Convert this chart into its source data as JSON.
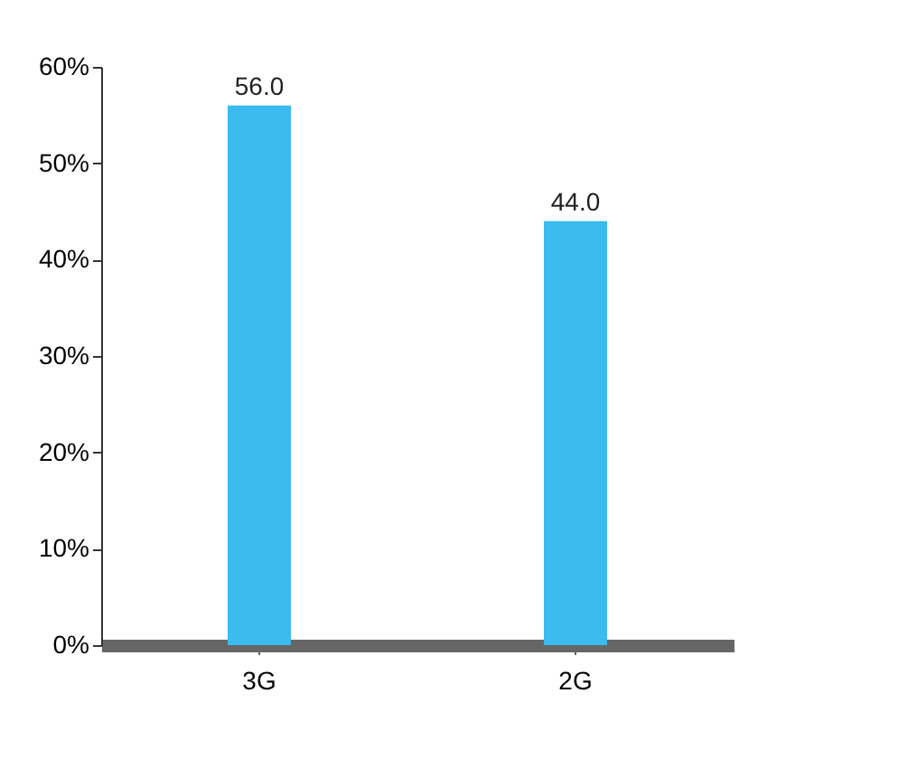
{
  "chart_data": {
    "type": "bar",
    "categories": [
      "3G",
      "2G"
    ],
    "values": [
      56.0,
      44.0
    ],
    "value_labels": [
      "56.0",
      "44.0"
    ],
    "color": "#3bbbee",
    "ylim": [
      0,
      60
    ],
    "yticks": [
      {
        "value": 0,
        "label": "0%"
      },
      {
        "value": 10,
        "label": "10%"
      },
      {
        "value": 20,
        "label": "20%"
      },
      {
        "value": 30,
        "label": "30%"
      },
      {
        "value": 40,
        "label": "40%"
      },
      {
        "value": 50,
        "label": "50%"
      },
      {
        "value": 60,
        "label": "60%"
      }
    ],
    "grid": false
  }
}
